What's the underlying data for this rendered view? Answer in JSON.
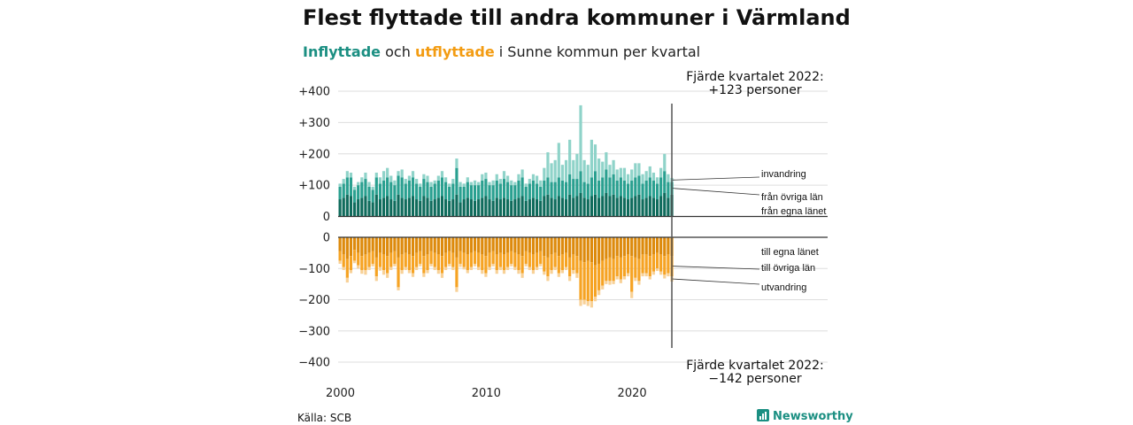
{
  "title": "Flest flyttade till andra kommuner i Värmland",
  "subtitle": {
    "in_word": "Inflyttade",
    "mid": " och ",
    "out_word": "utflyttade",
    "rest": " i Sunne kommun per kvartal"
  },
  "colors": {
    "in_egna": "#0f6b5c",
    "in_ovriga": "#2aa090",
    "in_invandring": "#8fd3c9",
    "out_egna": "#dd8a0c",
    "out_ovriga": "#f6a323",
    "out_utvandring": "#f8d197",
    "axis": "#333333",
    "grid": "#dddddd",
    "brand": "#1b8f82"
  },
  "source": "Källa: SCB",
  "brand": "Newsworthy",
  "brand_icon": "bar-chart-icon",
  "annotations": {
    "top": {
      "line1": "Fjärde kvartalet 2022:",
      "line2": "+123 personer"
    },
    "bottom": {
      "line1": "Fjärde kvartalet 2022:",
      "line2": "−142 personer"
    }
  },
  "chart_data": {
    "type": "bar",
    "stacked": true,
    "x_unit": "quarter",
    "first_quarter": "2000 K1",
    "last_quarter": "2022 K4",
    "xticks": [
      {
        "year": 2000,
        "label": "2000"
      },
      {
        "year": 2010,
        "label": "2010"
      },
      {
        "year": 2020,
        "label": "2020"
      }
    ],
    "upper": {
      "ylim": [
        0,
        400
      ],
      "yticks": [
        {
          "value": 0,
          "label": "0"
        },
        {
          "value": 100,
          "label": "+100"
        },
        {
          "value": 200,
          "label": "+200"
        },
        {
          "value": 300,
          "label": "+300"
        },
        {
          "value": 400,
          "label": "+400"
        }
      ],
      "series": [
        {
          "name": "från egna länet",
          "values": [
            55,
            60,
            70,
            65,
            45,
            55,
            60,
            65,
            50,
            45,
            70,
            55,
            60,
            65,
            55,
            50,
            70,
            60,
            55,
            60,
            65,
            55,
            50,
            65,
            60,
            50,
            55,
            60,
            65,
            55,
            50,
            55,
            70,
            45,
            55,
            60,
            55,
            50,
            55,
            60,
            65,
            55,
            50,
            60,
            55,
            60,
            55,
            50,
            55,
            60,
            65,
            50,
            55,
            60,
            55,
            50,
            65,
            70,
            60,
            55,
            65,
            60,
            55,
            70,
            60,
            65,
            75,
            60,
            55,
            65,
            70,
            60,
            65,
            75,
            65,
            70,
            60,
            65,
            60,
            55,
            60,
            65,
            70,
            55,
            60,
            65,
            60,
            55,
            65,
            75,
            60,
            70
          ]
        },
        {
          "name": "från övriga län",
          "values": [
            40,
            45,
            55,
            60,
            40,
            45,
            50,
            55,
            45,
            40,
            55,
            50,
            55,
            60,
            55,
            50,
            60,
            65,
            50,
            55,
            60,
            50,
            45,
            55,
            50,
            45,
            50,
            55,
            60,
            55,
            45,
            50,
            85,
            50,
            40,
            50,
            45,
            50,
            45,
            55,
            55,
            45,
            50,
            55,
            50,
            60,
            55,
            50,
            45,
            55,
            60,
            45,
            50,
            55,
            50,
            45,
            50,
            55,
            50,
            55,
            60,
            55,
            55,
            65,
            60,
            55,
            70,
            50,
            50,
            60,
            75,
            55,
            60,
            75,
            60,
            65,
            55,
            60,
            55,
            50,
            55,
            60,
            60,
            50,
            55,
            60,
            55,
            50,
            60,
            70,
            50,
            40
          ]
        },
        {
          "name": "invandring",
          "values": [
            10,
            15,
            20,
            15,
            10,
            10,
            15,
            20,
            15,
            10,
            15,
            20,
            30,
            30,
            20,
            15,
            15,
            25,
            15,
            15,
            20,
            15,
            10,
            15,
            20,
            15,
            10,
            15,
            20,
            15,
            10,
            15,
            30,
            15,
            10,
            15,
            10,
            15,
            10,
            20,
            20,
            10,
            15,
            20,
            15,
            25,
            20,
            15,
            10,
            20,
            25,
            10,
            15,
            20,
            25,
            20,
            40,
            80,
            60,
            70,
            110,
            50,
            70,
            110,
            60,
            80,
            210,
            70,
            60,
            120,
            85,
            70,
            50,
            55,
            40,
            45,
            35,
            30,
            40,
            30,
            35,
            45,
            40,
            30,
            30,
            35,
            25,
            20,
            30,
            55,
            25,
            13
          ]
        }
      ]
    },
    "lower": {
      "ylim": [
        -400,
        0
      ],
      "yticks": [
        {
          "value": 0,
          "label": "0"
        },
        {
          "value": -100,
          "label": "−100"
        },
        {
          "value": -200,
          "label": "−200"
        },
        {
          "value": -300,
          "label": "−300"
        },
        {
          "value": -400,
          "label": "−400"
        }
      ],
      "series": [
        {
          "name": "till egna länet",
          "values": [
            -45,
            -55,
            -70,
            -60,
            -40,
            -50,
            -60,
            -55,
            -50,
            -45,
            -65,
            -50,
            -55,
            -60,
            -50,
            -45,
            -65,
            -55,
            -50,
            -55,
            -60,
            -50,
            -45,
            -60,
            -55,
            -45,
            -50,
            -55,
            -60,
            -50,
            -45,
            -50,
            -65,
            -45,
            -50,
            -55,
            -50,
            -45,
            -50,
            -55,
            -60,
            -50,
            -45,
            -55,
            -50,
            -55,
            -50,
            -45,
            -50,
            -55,
            -60,
            -45,
            -50,
            -55,
            -50,
            -45,
            -60,
            -65,
            -55,
            -50,
            -60,
            -55,
            -50,
            -65,
            -55,
            -60,
            -75,
            -80,
            -75,
            -80,
            -90,
            -85,
            -75,
            -70,
            -65,
            -70,
            -60,
            -65,
            -60,
            -55,
            -60,
            -65,
            -70,
            -55,
            -55,
            -60,
            -55,
            -50,
            -55,
            -60,
            -55,
            -60
          ]
        },
        {
          "name": "till övriga län",
          "values": [
            -30,
            -40,
            -60,
            -45,
            -35,
            -40,
            -45,
            -50,
            -45,
            -40,
            -60,
            -45,
            -50,
            -55,
            -45,
            -40,
            -95,
            -50,
            -45,
            -50,
            -55,
            -45,
            -40,
            -55,
            -50,
            -40,
            -45,
            -50,
            -55,
            -45,
            -40,
            -45,
            -95,
            -40,
            -45,
            -50,
            -45,
            -40,
            -45,
            -50,
            -55,
            -45,
            -40,
            -50,
            -45,
            -50,
            -45,
            -40,
            -45,
            -50,
            -55,
            -40,
            -45,
            -50,
            -45,
            -40,
            -50,
            -60,
            -50,
            -45,
            -55,
            -50,
            -45,
            -60,
            -50,
            -55,
            -125,
            -120,
            -130,
            -125,
            -100,
            -85,
            -80,
            -70,
            -75,
            -70,
            -65,
            -70,
            -65,
            -60,
            -115,
            -65,
            -70,
            -60,
            -60,
            -65,
            -55,
            -50,
            -55,
            -60,
            -60,
            -65
          ]
        },
        {
          "name": "utvandring",
          "values": [
            -10,
            -10,
            -15,
            -10,
            -8,
            -10,
            -12,
            -15,
            -10,
            -8,
            -15,
            -12,
            -15,
            -15,
            -10,
            -8,
            -10,
            -12,
            -10,
            -10,
            -12,
            -10,
            -8,
            -12,
            -10,
            -8,
            -10,
            -12,
            -15,
            -10,
            -8,
            -10,
            -15,
            -10,
            -8,
            -10,
            -10,
            -8,
            -10,
            -12,
            -12,
            -10,
            -8,
            -12,
            -10,
            -12,
            -10,
            -8,
            -10,
            -12,
            -15,
            -8,
            -10,
            -12,
            -10,
            -8,
            -10,
            -15,
            -12,
            -10,
            -12,
            -10,
            -10,
            -15,
            -12,
            -15,
            -20,
            -15,
            -15,
            -20,
            -15,
            -15,
            -12,
            -10,
            -12,
            -10,
            -10,
            -12,
            -10,
            -10,
            -20,
            -10,
            -12,
            -10,
            -10,
            -10,
            -10,
            -8,
            -10,
            -12,
            -10,
            -17
          ]
        }
      ]
    }
  }
}
